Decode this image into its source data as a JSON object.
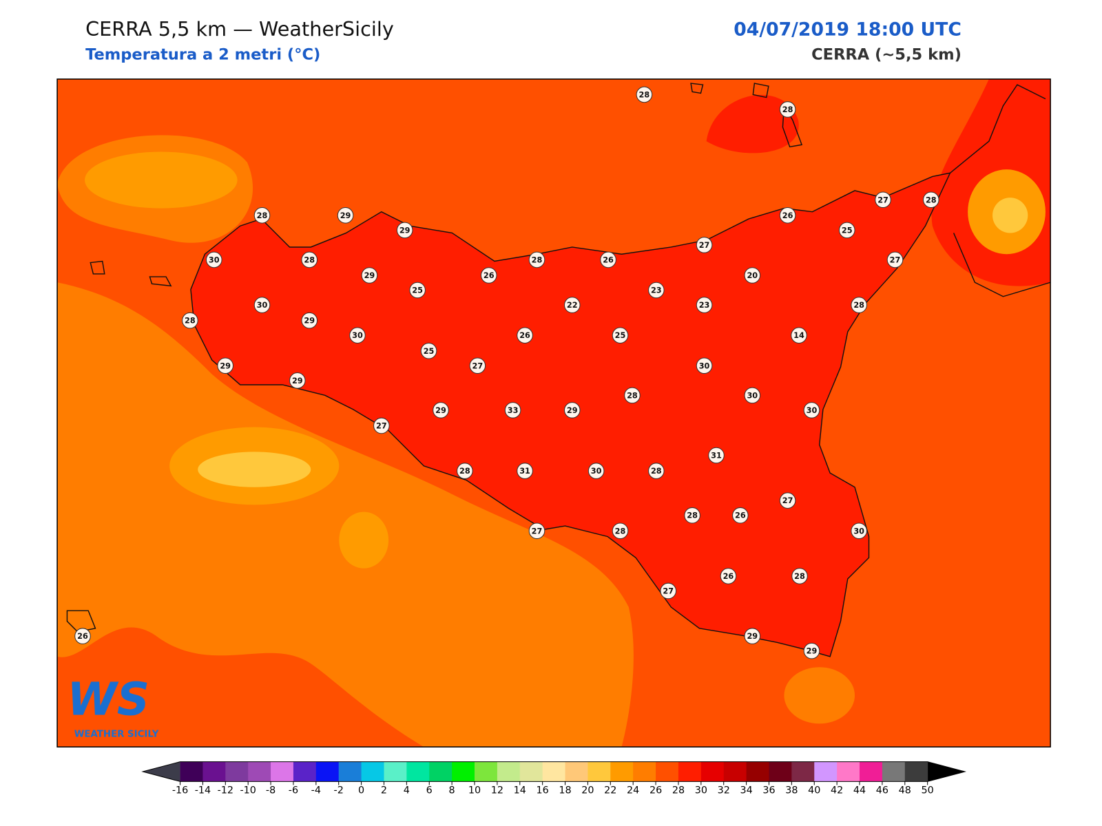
{
  "header": {
    "title": "CERRA 5,5 km — WeatherSicily",
    "subtitle": "Temperatura a 2 metri (°C)",
    "datetime": "04/07/2019 18:00 UTC",
    "model": "CERRA (~5,5 km)"
  },
  "stations": {
    "values": [
      28,
      28,
      28,
      29,
      29,
      30,
      28,
      29,
      25,
      26,
      28,
      26,
      27,
      26,
      27,
      28,
      25,
      27,
      20,
      23,
      23,
      22,
      30,
      28,
      29,
      30,
      26,
      25,
      14,
      28,
      29,
      29,
      25,
      27,
      30,
      30,
      30,
      28,
      29,
      33,
      29,
      27,
      31,
      28,
      31,
      30,
      28,
      27,
      26,
      28,
      30,
      27,
      28,
      27,
      26,
      28,
      29,
      29,
      26
    ]
  },
  "colorbar": {
    "ticks": [
      -16,
      -14,
      -12,
      -10,
      -8,
      -6,
      -4,
      -2,
      0,
      2,
      4,
      6,
      8,
      10,
      12,
      14,
      16,
      18,
      20,
      22,
      24,
      26,
      28,
      30,
      32,
      34,
      36,
      38,
      40,
      42,
      44,
      46,
      48,
      50
    ],
    "colors": [
      "#3f0058",
      "#6a1190",
      "#7e3a9e",
      "#9e4ab5",
      "#dc76e8",
      "#5a23c8",
      "#0a14f5",
      "#1a7ed8",
      "#06c8e6",
      "#5af0c8",
      "#00e6a0",
      "#00d264",
      "#00f000",
      "#7de63c",
      "#c3eb8c",
      "#e1e69b",
      "#ffe6a0",
      "#ffc878",
      "#ffc83c",
      "#ff9b00",
      "#ff7d00",
      "#ff5000",
      "#ff1e00",
      "#e60000",
      "#c80000",
      "#960000",
      "#6e0018",
      "#7d2846",
      "#d296ff",
      "#ff78c8",
      "#f01e96",
      "#787878",
      "#3c3c3c"
    ],
    "under_color": "#3c3c4a",
    "over_color": "#000000"
  },
  "logo": {
    "mark": "WS",
    "name": "WEATHER SICILY"
  }
}
